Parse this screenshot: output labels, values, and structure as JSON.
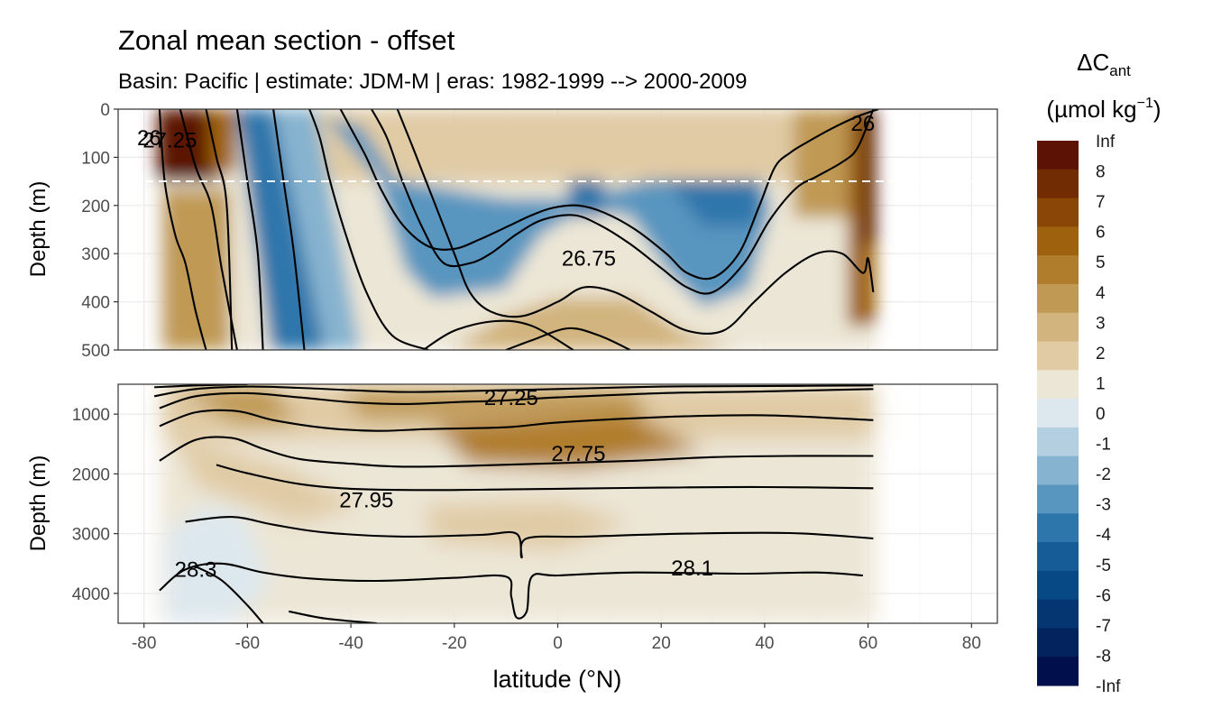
{
  "chart_data": {
    "type": "contour",
    "title": "Zonal mean section - offset",
    "subtitle": "Basin: Pacific | estimate: JDM-M | eras: 1982-1999 --> 2000-2009",
    "xlabel": "latitude (°N)",
    "x_ticks": [
      -80,
      -60,
      -40,
      -20,
      0,
      20,
      40,
      60,
      80
    ],
    "xlim": [
      -85,
      85
    ],
    "data_lat_range": [
      -77,
      62
    ],
    "dashed_line_depth": 150,
    "upper_panel": {
      "ylabel": "Depth (m)",
      "ylim": [
        500,
        0
      ],
      "y_ticks": [
        0,
        100,
        200,
        300,
        400,
        500
      ],
      "isopycnal_labels": [
        {
          "text": "26",
          "lat": -79,
          "depth": 60
        },
        {
          "text": "27.25",
          "lat": -75,
          "depth": 65
        },
        {
          "text": "26.75",
          "lat": 6,
          "depth": 310
        },
        {
          "text": "26",
          "lat": 59,
          "depth": 30
        }
      ],
      "isopycnals": [
        [
          [
            -77,
            0
          ],
          [
            -76,
            150
          ],
          [
            -74,
            260
          ],
          [
            -72,
            320
          ],
          [
            -70,
            420
          ],
          [
            -68,
            500
          ]
        ],
        [
          [
            -73,
            0
          ],
          [
            -70,
            120
          ],
          [
            -67,
            200
          ],
          [
            -65,
            330
          ],
          [
            -62,
            500
          ]
        ],
        [
          [
            -68,
            0
          ],
          [
            -66,
            100
          ],
          [
            -64,
            200
          ],
          [
            -63,
            500
          ]
        ],
        [
          [
            -62,
            0
          ],
          [
            -60,
            150
          ],
          [
            -58,
            300
          ],
          [
            -57,
            500
          ]
        ],
        [
          [
            -55,
            0
          ],
          [
            -53,
            150
          ],
          [
            -51,
            300
          ],
          [
            -49,
            500
          ]
        ],
        [
          [
            -48,
            0
          ],
          [
            -46,
            60
          ],
          [
            -44,
            150
          ],
          [
            -41,
            260
          ],
          [
            -37,
            380
          ],
          [
            -32,
            470
          ],
          [
            -25,
            500
          ]
        ],
        [
          [
            -42,
            0
          ],
          [
            -40,
            40
          ],
          [
            -37,
            100
          ],
          [
            -34,
            170
          ],
          [
            -30,
            240
          ],
          [
            -25,
            285
          ],
          [
            -20,
            290
          ],
          [
            -15,
            270
          ],
          [
            -9,
            240
          ],
          [
            -5,
            220
          ],
          [
            -1,
            205
          ],
          [
            4,
            200
          ],
          [
            9,
            215
          ],
          [
            15,
            250
          ],
          [
            21,
            300
          ],
          [
            25,
            340
          ],
          [
            30,
            350
          ],
          [
            35,
            300
          ],
          [
            39,
            200
          ],
          [
            42,
            120
          ],
          [
            45,
            90
          ],
          [
            48,
            70
          ],
          [
            53,
            40
          ],
          [
            58,
            15
          ],
          [
            62,
            0
          ]
        ],
        [
          [
            -36,
            0
          ],
          [
            -33,
            60
          ],
          [
            -30,
            150
          ],
          [
            -26,
            250
          ],
          [
            -22,
            320
          ],
          [
            -17,
            320
          ],
          [
            -13,
            300
          ],
          [
            -8,
            260
          ],
          [
            -3,
            230
          ],
          [
            3,
            220
          ],
          [
            8,
            240
          ],
          [
            14,
            280
          ],
          [
            20,
            330
          ],
          [
            25,
            370
          ],
          [
            30,
            380
          ],
          [
            36,
            320
          ],
          [
            41,
            230
          ],
          [
            46,
            165
          ],
          [
            50,
            140
          ],
          [
            55,
            110
          ],
          [
            58,
            80
          ],
          [
            61,
            0
          ]
        ],
        [
          [
            -31,
            0
          ],
          [
            -28,
            80
          ],
          [
            -24,
            190
          ],
          [
            -20,
            300
          ],
          [
            -17,
            380
          ],
          [
            -13,
            420
          ],
          [
            -7,
            430
          ],
          [
            0,
            400
          ],
          [
            5,
            370
          ],
          [
            11,
            380
          ],
          [
            18,
            420
          ],
          [
            25,
            460
          ],
          [
            32,
            460
          ],
          [
            38,
            400
          ],
          [
            44,
            340
          ],
          [
            50,
            300
          ],
          [
            55,
            300
          ],
          [
            59,
            340
          ],
          [
            60,
            310
          ],
          [
            61,
            380
          ]
        ],
        [
          [
            -26,
            500
          ],
          [
            -20,
            460
          ],
          [
            -12,
            440
          ],
          [
            -5,
            450
          ],
          [
            3,
            500
          ]
        ],
        [
          [
            -10,
            500
          ],
          [
            -5,
            480
          ],
          [
            2,
            455
          ],
          [
            8,
            470
          ],
          [
            14,
            500
          ]
        ]
      ]
    },
    "lower_panel": {
      "ylabel": "Depth (m)",
      "ylim": [
        4500,
        500
      ],
      "y_ticks": [
        1000,
        2000,
        3000,
        4000
      ],
      "isopycnal_labels": [
        {
          "text": "27.25",
          "lat": -9,
          "depth": 730
        },
        {
          "text": "27.75",
          "lat": 4,
          "depth": 1660
        },
        {
          "text": "27.95",
          "lat": -37,
          "depth": 2440
        },
        {
          "text": "28.3",
          "lat": -70,
          "depth": 3600
        },
        {
          "text": "28.1",
          "lat": 26,
          "depth": 3580
        }
      ],
      "isopycnals": [
        [
          [
            -78,
            550
          ],
          [
            -70,
            520
          ],
          [
            -60,
            500
          ]
        ],
        [
          [
            -78,
            700
          ],
          [
            -70,
            580
          ],
          [
            -60,
            540
          ],
          [
            -50,
            560
          ],
          [
            -40,
            600
          ],
          [
            -30,
            630
          ],
          [
            -20,
            620
          ],
          [
            -10,
            600
          ],
          [
            0,
            580
          ],
          [
            20,
            540
          ],
          [
            40,
            530
          ],
          [
            61,
            520
          ]
        ],
        [
          [
            -77,
            900
          ],
          [
            -70,
            700
          ],
          [
            -60,
            650
          ],
          [
            -50,
            720
          ],
          [
            -40,
            800
          ],
          [
            -30,
            830
          ],
          [
            -20,
            800
          ],
          [
            -10,
            770
          ],
          [
            0,
            720
          ],
          [
            20,
            650
          ],
          [
            40,
            620
          ],
          [
            61,
            580
          ]
        ],
        [
          [
            -77,
            1200
          ],
          [
            -70,
            970
          ],
          [
            -62,
            950
          ],
          [
            -55,
            1100
          ],
          [
            -45,
            1230
          ],
          [
            -35,
            1280
          ],
          [
            -25,
            1250
          ],
          [
            -10,
            1220
          ],
          [
            0,
            1140
          ],
          [
            20,
            1050
          ],
          [
            40,
            1020
          ],
          [
            61,
            1100
          ]
        ],
        [
          [
            -77,
            1780
          ],
          [
            -70,
            1430
          ],
          [
            -63,
            1400
          ],
          [
            -57,
            1580
          ],
          [
            -50,
            1750
          ],
          [
            -40,
            1830
          ],
          [
            -30,
            1880
          ],
          [
            -15,
            1860
          ],
          [
            0,
            1820
          ],
          [
            15,
            1780
          ],
          [
            30,
            1720
          ],
          [
            45,
            1700
          ],
          [
            61,
            1700
          ]
        ],
        [
          [
            -66,
            1850
          ],
          [
            -60,
            1990
          ],
          [
            -50,
            2170
          ],
          [
            -40,
            2250
          ],
          [
            -25,
            2270
          ],
          [
            -10,
            2260
          ],
          [
            0,
            2250
          ],
          [
            20,
            2230
          ],
          [
            40,
            2220
          ],
          [
            61,
            2240
          ]
        ],
        [
          [
            -72,
            2800
          ],
          [
            -63,
            2720
          ],
          [
            -55,
            2850
          ],
          [
            -45,
            2980
          ],
          [
            -30,
            3050
          ],
          [
            -15,
            3020
          ],
          [
            -8,
            3000
          ],
          [
            -7,
            3400
          ],
          [
            -6,
            3080
          ],
          [
            5,
            3050
          ],
          [
            25,
            3000
          ],
          [
            45,
            2990
          ],
          [
            61,
            3080
          ]
        ],
        [
          [
            -77,
            3950
          ],
          [
            -72,
            3600
          ],
          [
            -65,
            3500
          ],
          [
            -57,
            3650
          ],
          [
            -48,
            3750
          ],
          [
            -35,
            3790
          ],
          [
            -20,
            3740
          ],
          [
            -10,
            3720
          ],
          [
            -9,
            4050
          ],
          [
            -8,
            4400
          ],
          [
            -6,
            4300
          ],
          [
            -5,
            3720
          ],
          [
            0,
            3700
          ],
          [
            15,
            3650
          ],
          [
            35,
            3670
          ],
          [
            50,
            3650
          ],
          [
            59,
            3700
          ]
        ],
        [
          [
            -70,
            3550
          ],
          [
            -65,
            3780
          ],
          [
            -60,
            4200
          ],
          [
            -57,
            4500
          ]
        ],
        [
          [
            -52,
            4300
          ],
          [
            -45,
            4420
          ],
          [
            -35,
            4500
          ]
        ]
      ]
    },
    "legend": {
      "title_main": "ΔC",
      "title_sub": "ant",
      "units_left": "(µmol kg",
      "units_sup": "−1",
      "units_right": ")",
      "labels": [
        "Inf",
        "8",
        "7",
        "6",
        "5",
        "4",
        "3",
        "2",
        "1",
        "0",
        "-1",
        "-2",
        "-3",
        "-4",
        "-5",
        "-6",
        "-7",
        "-8",
        "-Inf"
      ],
      "colors": [
        "#5c1305",
        "#722c04",
        "#8a4607",
        "#9e620f",
        "#b07d2c",
        "#c09a54",
        "#d1b47e",
        "#e0cba5",
        "#ece6d6",
        "#dde8ee",
        "#b3cfe0",
        "#86b3cf",
        "#5895bf",
        "#2d76ab",
        "#165d98",
        "#074984",
        "#063672",
        "#03235f",
        "#01104d"
      ]
    }
  }
}
